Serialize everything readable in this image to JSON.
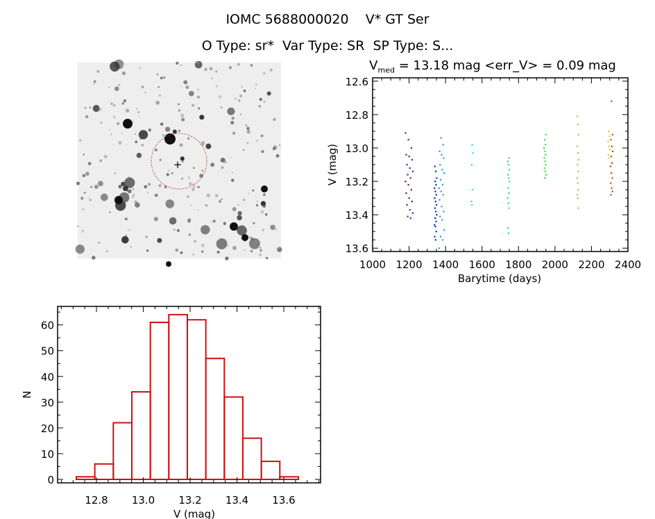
{
  "header": {
    "title": "IOMC 5688000020    V* GT Ser",
    "subtitle": "O Type: sr*  Var Type: SR  SP Type: S..."
  },
  "chart_data": [
    {
      "type": "scatter",
      "title_prefix": "V",
      "title_sub": "med",
      "title_rest": " = 13.18 mag <err_V> = 0.09 mag",
      "xlabel": "Barytime (days)",
      "ylabel": "V (mag)",
      "xlim": [
        1000,
        2400
      ],
      "ylim": [
        12.58,
        13.62
      ],
      "y_inverted": true,
      "xticks": [
        "1000",
        "1200",
        "1400",
        "1600",
        "1800",
        "2000",
        "2200",
        "2400"
      ],
      "yticks": [
        "12.6",
        "12.8",
        "13.0",
        "13.2",
        "13.4",
        "13.6"
      ],
      "series": [
        {
          "name": "epoch1",
          "color": "#5a1a8a",
          "x": 1200,
          "spread": 20,
          "y": [
            12.91,
            12.95,
            13.0,
            13.04,
            13.05,
            13.07,
            13.1,
            13.12,
            13.14,
            13.16,
            13.18,
            13.2,
            13.22,
            13.25,
            13.27,
            13.3,
            13.32,
            13.34,
            13.37,
            13.39,
            13.41,
            13.42
          ]
        },
        {
          "name": "epoch2",
          "color": "#1030b0",
          "x": 1345,
          "spread": 6,
          "y": [
            13.11,
            13.14,
            13.18,
            13.2,
            13.22,
            13.24,
            13.26,
            13.28,
            13.3,
            13.32,
            13.34,
            13.36,
            13.38,
            13.4,
            13.42,
            13.44,
            13.46,
            13.47,
            13.5,
            13.53,
            13.55
          ]
        },
        {
          "name": "epoch3",
          "color": "#20a0e0",
          "x": 1378,
          "spread": 14,
          "y": [
            12.94,
            12.98,
            13.02,
            13.04,
            13.06,
            13.1,
            13.13,
            13.15,
            13.19,
            13.22,
            13.24,
            13.26,
            13.28,
            13.31,
            13.35,
            13.38,
            13.41,
            13.43,
            13.49,
            13.53,
            13.55,
            13.6
          ]
        },
        {
          "name": "epoch4",
          "color": "#30d8d8",
          "x": 1545,
          "spread": 4,
          "y": [
            12.98,
            13.03,
            13.1,
            13.25,
            13.32,
            13.34
          ]
        },
        {
          "name": "epoch5",
          "color": "#30e070",
          "x": 1745,
          "spread": 5,
          "y": [
            13.06,
            13.08,
            13.1,
            13.13,
            13.16,
            13.18,
            13.2,
            13.24,
            13.27,
            13.3,
            13.33,
            13.36,
            13.48,
            13.51
          ]
        },
        {
          "name": "epoch6",
          "color": "#40e040",
          "x": 1945,
          "spread": 5,
          "y": [
            12.92,
            12.95,
            12.98,
            13.0,
            13.02,
            13.04,
            13.06,
            13.08,
            13.1,
            13.12,
            13.14,
            13.16,
            13.18
          ]
        },
        {
          "name": "epoch7",
          "color": "#80e030",
          "x": 2125,
          "spread": 4,
          "y": [
            12.81,
            12.86,
            12.92,
            12.99,
            13.03,
            13.07,
            13.1,
            13.14,
            13.18,
            13.21,
            13.25,
            13.28,
            13.3,
            13.36
          ]
        },
        {
          "name": "epoch8",
          "color": "#e0d020",
          "x": 2297,
          "spread": 6,
          "y": [
            12.9,
            12.93,
            12.96,
            12.99,
            13.01,
            13.04,
            13.06
          ]
        },
        {
          "name": "epoch9",
          "color": "#d04010",
          "x": 2310,
          "spread": 6,
          "y": [
            12.72,
            12.92,
            12.95,
            12.99,
            13.02,
            13.05,
            13.09,
            13.11,
            13.15,
            13.18,
            13.21,
            13.24,
            13.26,
            13.28
          ]
        }
      ]
    },
    {
      "type": "bar",
      "style": "histogram",
      "xlabel": "V (mag)",
      "ylabel": "N",
      "xlim": [
        12.634,
        13.757
      ],
      "ylim": [
        -1.35,
        67.2
      ],
      "xticks": [
        "12.8",
        "13.0",
        "13.2",
        "13.4",
        "13.6"
      ],
      "yticks": [
        "0",
        "10",
        "20",
        "30",
        "40",
        "50",
        "60"
      ],
      "bin_edges": [
        12.714,
        12.793,
        12.872,
        12.951,
        13.03,
        13.109,
        13.188,
        13.267,
        13.346,
        13.425,
        13.504,
        13.583,
        13.662
      ],
      "values": [
        1,
        6,
        22,
        34,
        61,
        64,
        62,
        47,
        32,
        16,
        7,
        1
      ],
      "color": "#cc1111"
    }
  ],
  "colors": {
    "axis": "#000000",
    "histogram": "#cc1111",
    "marker": "#cc2222"
  }
}
